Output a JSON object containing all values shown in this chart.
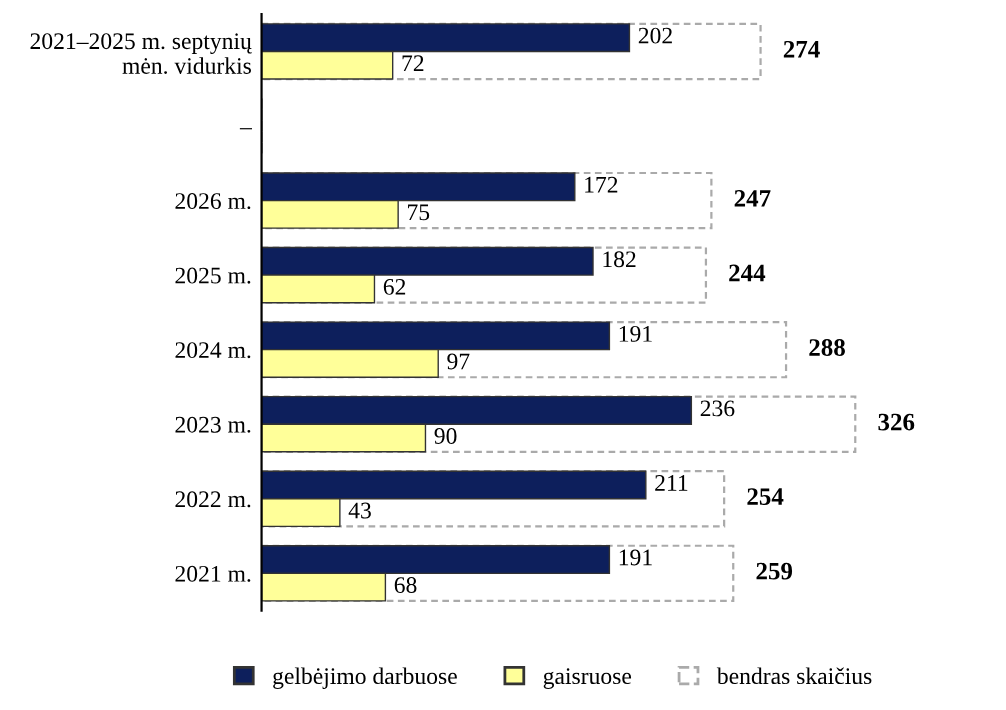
{
  "chart_data": {
    "type": "bar",
    "orientation": "horizontal",
    "data_labels": true,
    "legend": "bottom",
    "grid": false,
    "categories": [
      "2021–2025 m. septynių\nmėn. vidurkis",
      "–",
      "2026 m.",
      "2025 m.",
      "2024 m.",
      "2023 m.",
      "2022 m.",
      "2021 m."
    ],
    "series": [
      {
        "name": "gelbėjimo darbuose",
        "color": "#0d1f5c",
        "values": [
          202,
          null,
          172,
          182,
          191,
          236,
          211,
          191
        ]
      },
      {
        "name": "gaisruose",
        "color": "#ffff99",
        "values": [
          72,
          null,
          75,
          62,
          97,
          90,
          43,
          68
        ]
      },
      {
        "name": "bendras skaičius",
        "color": "#ffffff",
        "values": [
          274,
          null,
          247,
          244,
          288,
          326,
          254,
          259
        ]
      }
    ]
  }
}
